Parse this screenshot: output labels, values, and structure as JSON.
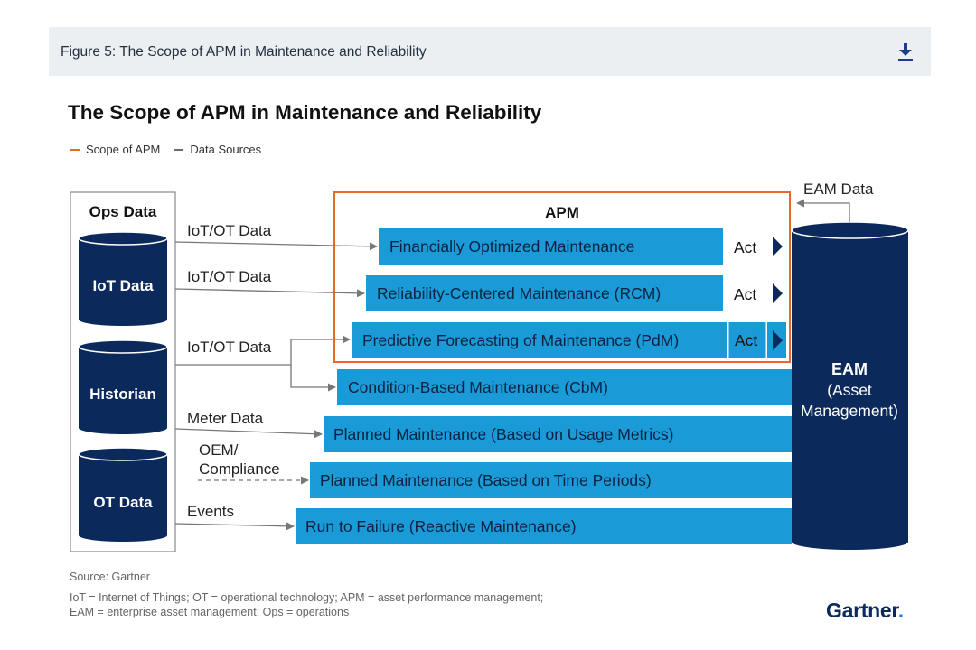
{
  "figure_caption": "Figure 5: The Scope of APM in Maintenance and Reliability",
  "title": "The Scope of APM in Maintenance and Reliability",
  "legend": [
    {
      "label": "Scope of APM",
      "color": "#e8692a"
    },
    {
      "label": "Data Sources",
      "color": "#6d6d6d"
    }
  ],
  "ops_data": {
    "heading": "Ops Data",
    "sources": [
      "IoT Data",
      "Historian",
      "OT Data"
    ]
  },
  "flow_labels": {
    "iot1": "IoT/OT Data",
    "iot2": "IoT/OT Data",
    "iot3": "IoT/OT Data",
    "meter": "Meter Data",
    "oem_line1": "OEM/",
    "oem_line2": "Compliance",
    "events": "Events"
  },
  "apm": {
    "label": "APM",
    "strategies": [
      "Financially Optimized Maintenance",
      "Reliability-Centered Maintenance (RCM)",
      "Predictive Forecasting of Maintenance (PdM)"
    ],
    "act_label": "Act"
  },
  "other_strategies": [
    "Condition-Based Maintenance (CbM)",
    "Planned Maintenance (Based on Usage Metrics)",
    "Planned Maintenance (Based on Time Periods)",
    "Run to Failure (Reactive Maintenance)"
  ],
  "eam": {
    "data_label": "EAM Data",
    "title": "EAM",
    "subtitle_line1": "(Asset",
    "subtitle_line2": "Management)"
  },
  "colors": {
    "bar_blue": "#1a9ad6",
    "navy": "#0b2a5b",
    "apm_orange": "#e8692a",
    "arrow_gray": "#777777"
  },
  "source": "Source: Gartner",
  "footnote_line1": "IoT = Internet of Things; OT = operational technology; APM = asset performance management;",
  "footnote_line2": "EAM = enterprise asset management; Ops = operations",
  "brand": "Gartner",
  "brand_dot": "."
}
